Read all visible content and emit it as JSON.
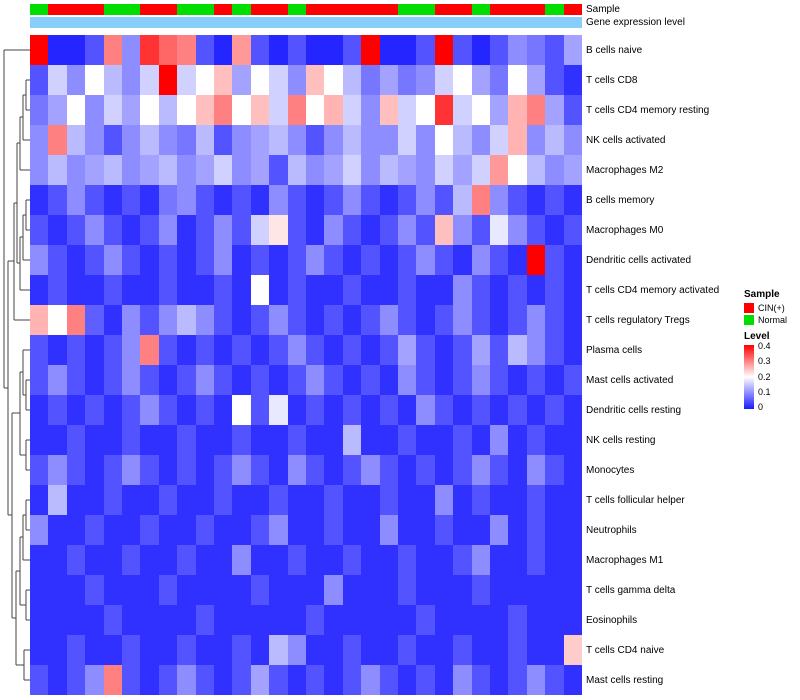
{
  "annotations": {
    "sample_label": "Sample",
    "expression_label": "Gene expression level",
    "expression_color": "#87cefa",
    "group_colors": {
      "CIN(+)": "#ff0000",
      "Normal": "#00dd00"
    }
  },
  "legend": {
    "sample_title": "Sample",
    "items": [
      {
        "label": "CIN(+)",
        "color": "#ff0000"
      },
      {
        "label": "Normal",
        "color": "#00dd00"
      }
    ],
    "level_title": "Level",
    "ticks": [
      "0.4",
      "0.3",
      "0.2",
      "0.1",
      "0"
    ]
  },
  "chart_data": {
    "type": "heatmap",
    "rows": [
      "B cells naive",
      "T cells CD8",
      "T cells CD4 memory resting",
      "NK cells activated",
      "Macrophages M2",
      "B cells memory",
      "Macrophages M0",
      "Dendritic cells activated",
      "T cells CD4 memory activated",
      "T cells regulatory Tregs",
      "Plasma cells",
      "Mast cells activated",
      "Dendritic cells resting",
      "NK cells resting",
      "Monocytes",
      "T cells follicular helper",
      "Neutrophils",
      "Macrophages M1",
      "T cells gamma delta",
      "Eosinophils",
      "T cells CD4 naive",
      "Mast cells resting"
    ],
    "column_count": 30,
    "sample_groups": [
      "Normal",
      "CIN(+)",
      "CIN(+)",
      "CIN(+)",
      "Normal",
      "Normal",
      "CIN(+)",
      "CIN(+)",
      "Normal",
      "Normal",
      "CIN(+)",
      "Normal",
      "CIN(+)",
      "CIN(+)",
      "Normal",
      "CIN(+)",
      "CIN(+)",
      "CIN(+)",
      "CIN(+)",
      "CIN(+)",
      "Normal",
      "Normal",
      "CIN(+)",
      "CIN(+)",
      "Normal",
      "CIN(+)",
      "CIN(+)",
      "CIN(+)",
      "Normal",
      "CIN(+)"
    ],
    "colormap": {
      "min": 0,
      "mid": 0.2,
      "max": 0.4,
      "min_color": "#1a1aff",
      "mid_color": "#ffffff",
      "max_color": "#ff0000"
    },
    "values": [
      [
        0.42,
        0.01,
        0.01,
        0.05,
        0.3,
        0.1,
        0.36,
        0.32,
        0.3,
        0.05,
        0.01,
        0.28,
        0.05,
        0.01,
        0.05,
        0.01,
        0.01,
        0.05,
        0.42,
        0.01,
        0.01,
        0.05,
        0.42,
        0.05,
        0.01,
        0.05,
        0.1,
        0.08,
        0.05,
        0.12
      ],
      [
        0.05,
        0.16,
        0.1,
        0.2,
        0.14,
        0.1,
        0.16,
        0.42,
        0.16,
        0.2,
        0.25,
        0.12,
        0.2,
        0.16,
        0.1,
        0.25,
        0.2,
        0.14,
        0.08,
        0.12,
        0.08,
        0.1,
        0.16,
        0.2,
        0.12,
        0.08,
        0.2,
        0.12,
        0.05,
        0.02
      ],
      [
        0.08,
        0.12,
        0.2,
        0.1,
        0.16,
        0.12,
        0.2,
        0.14,
        0.2,
        0.25,
        0.3,
        0.2,
        0.25,
        0.16,
        0.3,
        0.2,
        0.26,
        0.16,
        0.1,
        0.25,
        0.16,
        0.2,
        0.36,
        0.16,
        0.2,
        0.12,
        0.26,
        0.3,
        0.12,
        0.05
      ],
      [
        0.1,
        0.3,
        0.14,
        0.1,
        0.05,
        0.1,
        0.14,
        0.1,
        0.08,
        0.14,
        0.05,
        0.1,
        0.12,
        0.14,
        0.1,
        0.05,
        0.1,
        0.14,
        0.1,
        0.1,
        0.16,
        0.1,
        0.2,
        0.14,
        0.1,
        0.16,
        0.26,
        0.1,
        0.14,
        0.1
      ],
      [
        0.1,
        0.14,
        0.1,
        0.12,
        0.14,
        0.1,
        0.12,
        0.14,
        0.1,
        0.12,
        0.16,
        0.1,
        0.12,
        0.05,
        0.14,
        0.1,
        0.12,
        0.16,
        0.1,
        0.14,
        0.12,
        0.1,
        0.16,
        0.12,
        0.16,
        0.28,
        0.2,
        0.14,
        0.1,
        0.12
      ],
      [
        0.02,
        0.05,
        0.1,
        0.05,
        0.02,
        0.05,
        0.02,
        0.08,
        0.1,
        0.05,
        0.02,
        0.05,
        0.02,
        0.1,
        0.05,
        0.02,
        0.05,
        0.1,
        0.05,
        0.02,
        0.05,
        0.1,
        0.05,
        0.14,
        0.3,
        0.1,
        0.05,
        0.02,
        0.05,
        0.02
      ],
      [
        0.05,
        0.02,
        0.05,
        0.1,
        0.05,
        0.02,
        0.05,
        0.1,
        0.02,
        0.05,
        0.1,
        0.05,
        0.16,
        0.22,
        0.05,
        0.02,
        0.1,
        0.05,
        0.02,
        0.05,
        0.1,
        0.05,
        0.25,
        0.1,
        0.05,
        0.18,
        0.1,
        0.05,
        0.02,
        0.05
      ],
      [
        0.1,
        0.05,
        0.02,
        0.05,
        0.1,
        0.05,
        0.02,
        0.05,
        0.02,
        0.05,
        0.1,
        0.02,
        0.05,
        0.02,
        0.05,
        0.1,
        0.05,
        0.02,
        0.05,
        0.02,
        0.05,
        0.1,
        0.05,
        0.02,
        0.1,
        0.05,
        0.02,
        0.44,
        0.05,
        0.02
      ],
      [
        0.02,
        0.05,
        0.02,
        0.02,
        0.05,
        0.02,
        0.02,
        0.05,
        0.02,
        0.02,
        0.05,
        0.02,
        0.2,
        0.02,
        0.05,
        0.02,
        0.02,
        0.05,
        0.02,
        0.02,
        0.05,
        0.02,
        0.02,
        0.1,
        0.05,
        0.02,
        0.05,
        0.02,
        0.05,
        0.02
      ],
      [
        0.26,
        0.2,
        0.3,
        0.06,
        0.02,
        0.1,
        0.05,
        0.1,
        0.14,
        0.1,
        0.05,
        0.02,
        0.05,
        0.1,
        0.05,
        0.02,
        0.05,
        0.02,
        0.05,
        0.1,
        0.05,
        0.02,
        0.05,
        0.1,
        0.05,
        0.02,
        0.05,
        0.1,
        0.05,
        0.02
      ],
      [
        0.05,
        0.02,
        0.05,
        0.02,
        0.05,
        0.1,
        0.3,
        0.05,
        0.02,
        0.05,
        0.02,
        0.05,
        0.02,
        0.05,
        0.1,
        0.05,
        0.02,
        0.05,
        0.02,
        0.05,
        0.12,
        0.05,
        0.02,
        0.05,
        0.12,
        0.05,
        0.14,
        0.1,
        0.05,
        0.02
      ],
      [
        0.05,
        0.1,
        0.05,
        0.02,
        0.05,
        0.1,
        0.05,
        0.02,
        0.05,
        0.1,
        0.05,
        0.02,
        0.05,
        0.02,
        0.05,
        0.1,
        0.05,
        0.02,
        0.05,
        0.02,
        0.1,
        0.05,
        0.02,
        0.05,
        0.1,
        0.05,
        0.02,
        0.05,
        0.02,
        0.05
      ],
      [
        0.02,
        0.05,
        0.02,
        0.05,
        0.02,
        0.05,
        0.1,
        0.05,
        0.02,
        0.05,
        0.02,
        0.2,
        0.05,
        0.18,
        0.02,
        0.05,
        0.02,
        0.05,
        0.02,
        0.05,
        0.02,
        0.1,
        0.05,
        0.02,
        0.05,
        0.02,
        0.05,
        0.02,
        0.05,
        0.02
      ],
      [
        0.02,
        0.02,
        0.05,
        0.02,
        0.02,
        0.05,
        0.02,
        0.02,
        0.05,
        0.02,
        0.02,
        0.05,
        0.02,
        0.02,
        0.05,
        0.02,
        0.02,
        0.14,
        0.02,
        0.02,
        0.05,
        0.02,
        0.02,
        0.05,
        0.02,
        0.1,
        0.02,
        0.05,
        0.02,
        0.02
      ],
      [
        0.05,
        0.1,
        0.05,
        0.02,
        0.05,
        0.1,
        0.05,
        0.02,
        0.05,
        0.02,
        0.05,
        0.1,
        0.05,
        0.02,
        0.1,
        0.05,
        0.02,
        0.05,
        0.1,
        0.05,
        0.02,
        0.05,
        0.02,
        0.05,
        0.1,
        0.05,
        0.02,
        0.1,
        0.05,
        0.02
      ],
      [
        0.02,
        0.14,
        0.02,
        0.02,
        0.05,
        0.02,
        0.02,
        0.05,
        0.02,
        0.02,
        0.05,
        0.02,
        0.02,
        0.05,
        0.02,
        0.02,
        0.05,
        0.02,
        0.02,
        0.05,
        0.02,
        0.02,
        0.1,
        0.02,
        0.05,
        0.02,
        0.02,
        0.05,
        0.02,
        0.02
      ],
      [
        0.1,
        0.02,
        0.02,
        0.05,
        0.02,
        0.02,
        0.05,
        0.02,
        0.02,
        0.05,
        0.02,
        0.02,
        0.05,
        0.1,
        0.02,
        0.02,
        0.05,
        0.02,
        0.02,
        0.1,
        0.02,
        0.02,
        0.05,
        0.02,
        0.02,
        0.1,
        0.02,
        0.05,
        0.02,
        0.02
      ],
      [
        0.02,
        0.02,
        0.05,
        0.02,
        0.02,
        0.05,
        0.02,
        0.02,
        0.05,
        0.02,
        0.02,
        0.1,
        0.02,
        0.02,
        0.05,
        0.02,
        0.02,
        0.05,
        0.02,
        0.02,
        0.05,
        0.02,
        0.02,
        0.05,
        0.1,
        0.02,
        0.02,
        0.05,
        0.02,
        0.02
      ],
      [
        0.02,
        0.02,
        0.02,
        0.05,
        0.02,
        0.02,
        0.02,
        0.05,
        0.02,
        0.02,
        0.02,
        0.02,
        0.05,
        0.02,
        0.02,
        0.02,
        0.1,
        0.02,
        0.02,
        0.02,
        0.05,
        0.02,
        0.02,
        0.02,
        0.05,
        0.02,
        0.02,
        0.02,
        0.02,
        0.02
      ],
      [
        0.02,
        0.02,
        0.02,
        0.02,
        0.05,
        0.02,
        0.02,
        0.02,
        0.02,
        0.05,
        0.02,
        0.02,
        0.02,
        0.02,
        0.02,
        0.05,
        0.02,
        0.02,
        0.02,
        0.02,
        0.02,
        0.05,
        0.02,
        0.02,
        0.02,
        0.02,
        0.05,
        0.02,
        0.02,
        0.02
      ],
      [
        0.02,
        0.02,
        0.05,
        0.02,
        0.02,
        0.05,
        0.02,
        0.02,
        0.05,
        0.02,
        0.02,
        0.05,
        0.02,
        0.14,
        0.1,
        0.02,
        0.02,
        0.05,
        0.02,
        0.02,
        0.05,
        0.02,
        0.02,
        0.05,
        0.02,
        0.02,
        0.05,
        0.02,
        0.02,
        0.24
      ],
      [
        0.05,
        0.02,
        0.05,
        0.1,
        0.3,
        0.05,
        0.02,
        0.05,
        0.1,
        0.05,
        0.02,
        0.05,
        0.12,
        0.05,
        0.02,
        0.05,
        0.02,
        0.05,
        0.1,
        0.05,
        0.02,
        0.05,
        0.02,
        0.1,
        0.05,
        0.02,
        0.05,
        0.1,
        0.05,
        0.02
      ]
    ]
  }
}
